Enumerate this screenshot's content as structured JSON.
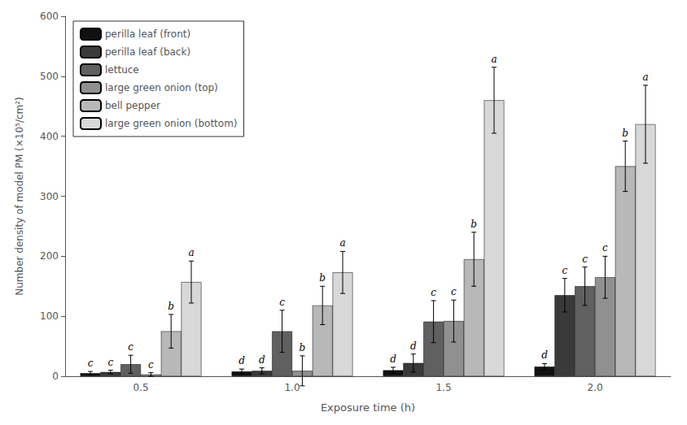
{
  "chart_data": {
    "type": "bar",
    "xlabel": "Exposure time (h)",
    "ylabel": "Number density of model PM (×10⁵/cm²)",
    "categories": [
      "0.5",
      "1.0",
      "1.5",
      "2.0"
    ],
    "series": [
      {
        "name": "perilla leaf (front)",
        "color": "#111111",
        "values": [
          5,
          8,
          10,
          16
        ],
        "errors": [
          3,
          4,
          5,
          5
        ],
        "letters": [
          "c",
          "d",
          "d",
          "d"
        ]
      },
      {
        "name": "perilla leaf (back)",
        "color": "#3a3a3a",
        "values": [
          7,
          9,
          22,
          135
        ],
        "errors": [
          3,
          5,
          15,
          28
        ],
        "letters": [
          "c",
          "d",
          "d",
          "c"
        ]
      },
      {
        "name": "lettuce",
        "color": "#606060",
        "values": [
          20,
          75,
          91,
          150
        ],
        "errors": [
          15,
          35,
          35,
          32
        ],
        "letters": [
          "c",
          "c",
          "c",
          "c"
        ]
      },
      {
        "name": "large green onion (top)",
        "color": "#909090",
        "values": [
          3,
          9,
          92,
          165
        ],
        "errors": [
          3,
          25,
          35,
          35
        ],
        "letters": [
          "c",
          "b",
          "c",
          "c"
        ]
      },
      {
        "name": "bell pepper",
        "color": "#b8b8b8",
        "values": [
          75,
          118,
          195,
          350
        ],
        "errors": [
          28,
          32,
          45,
          42
        ],
        "letters": [
          "b",
          "b",
          "b",
          "b"
        ]
      },
      {
        "name": "large green onion (bottom)",
        "color": "#d8d8d8",
        "values": [
          157,
          173,
          460,
          420
        ],
        "errors": [
          35,
          35,
          55,
          65
        ],
        "letters": [
          "a",
          "a",
          "a",
          "a"
        ]
      }
    ],
    "ylim": [
      0,
      600
    ],
    "yticks": [
      0,
      100,
      200,
      300,
      400,
      500,
      600
    ],
    "legend": "upper left",
    "grid": false
  }
}
